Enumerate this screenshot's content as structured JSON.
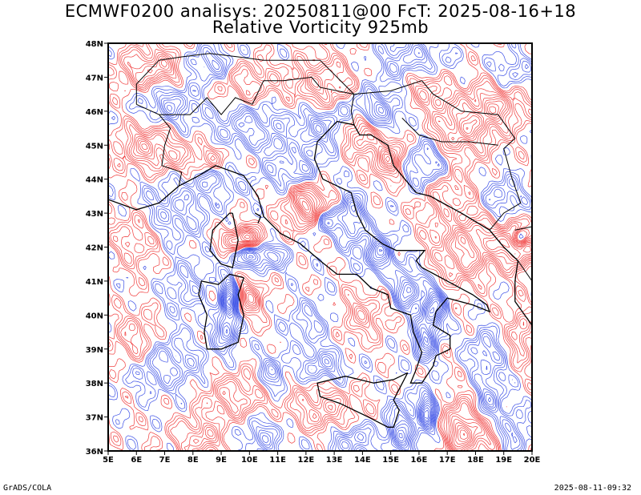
{
  "title": {
    "line1": "ECMWF0200 analisys: 20250811@00 FcT: 2025-08-16+18",
    "line2": "Relative Vorticity 925mb"
  },
  "map": {
    "lon_min": 5,
    "lon_max": 20,
    "lat_min": 36,
    "lat_max": 48,
    "lon_ticks": [
      "5E",
      "6E",
      "7E",
      "8E",
      "9E",
      "10E",
      "11E",
      "12E",
      "13E",
      "14E",
      "15E",
      "16E",
      "17E",
      "18E",
      "19E",
      "20E"
    ],
    "lat_ticks": [
      "36N",
      "37N",
      "38N",
      "39N",
      "40N",
      "41N",
      "42N",
      "43N",
      "44N",
      "45N",
      "46N",
      "47N",
      "48N"
    ],
    "colors": {
      "positive": "#f03c3c",
      "negative": "#3c50e6",
      "coast": "#000000",
      "frame": "#000000"
    }
  },
  "footer": {
    "left": "GrADS/COLA",
    "right": "2025-08-11-09:32"
  }
}
